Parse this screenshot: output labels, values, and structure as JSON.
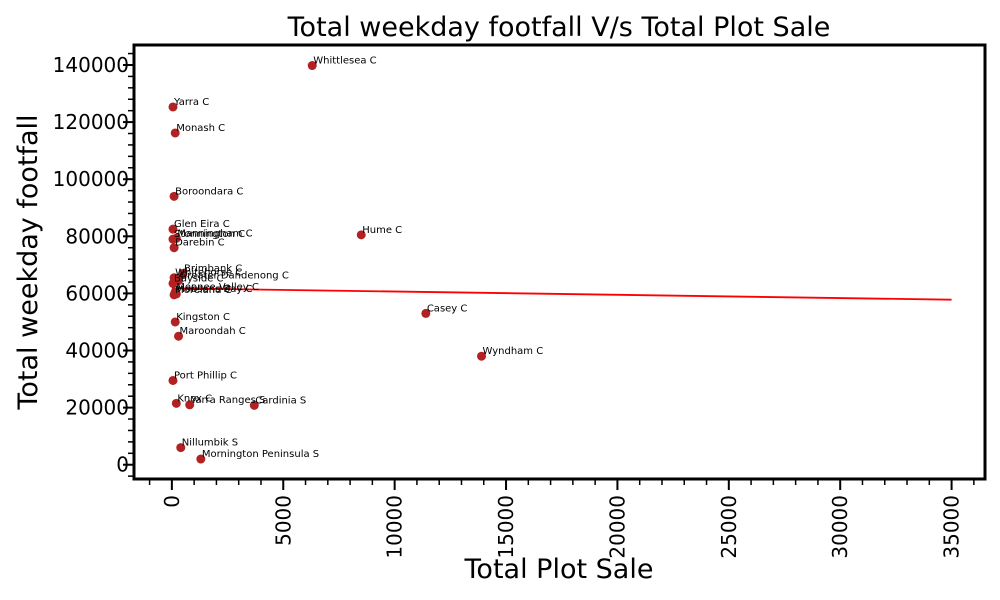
{
  "chart_data": {
    "type": "scatter",
    "title": "Total weekday footfall V/s Total Plot Sale",
    "xlabel": "Total Plot Sale",
    "ylabel": "Total weekday footfall",
    "xlim": [
      -1700,
      36500
    ],
    "ylim": [
      -5000,
      147000
    ],
    "x_ticks": [
      0,
      5000,
      10000,
      15000,
      20000,
      25000,
      30000,
      35000
    ],
    "y_ticks": [
      0,
      20000,
      40000,
      60000,
      80000,
      100000,
      120000,
      140000
    ],
    "grid": false,
    "point_color": "#b22222",
    "line_color": "#ff0000",
    "trend_line": {
      "x": [
        0,
        35000
      ],
      "y": [
        61800,
        57800
      ]
    },
    "points": [
      {
        "label": "Whittlesea C",
        "x": 6300,
        "y": 139800
      },
      {
        "label": "Yarra C",
        "x": 50,
        "y": 125300
      },
      {
        "label": "Monash C",
        "x": 150,
        "y": 116200
      },
      {
        "label": "Boroondara C",
        "x": 100,
        "y": 94000
      },
      {
        "label": "Glen Eira C",
        "x": 50,
        "y": 82500
      },
      {
        "label": "Stonnington C",
        "x": 50,
        "y": 79000
      },
      {
        "label": "Manningham C",
        "x": 200,
        "y": 79300
      },
      {
        "label": "Darebin C",
        "x": 100,
        "y": 76000
      },
      {
        "label": "Hume C",
        "x": 8500,
        "y": 80500
      },
      {
        "label": "Brimbank C",
        "x": 500,
        "y": 67000
      },
      {
        "label": "Whitehorse C",
        "x": 100,
        "y": 65500
      },
      {
        "label": "Bayside C",
        "x": 50,
        "y": 63500
      },
      {
        "label": "Greater Dandenong C",
        "x": 300,
        "y": 64500
      },
      {
        "label": "Moonee Valley C",
        "x": 150,
        "y": 60500
      },
      {
        "label": "Moreland C",
        "x": 100,
        "y": 59500
      },
      {
        "label": "Hobsons Bay C",
        "x": 200,
        "y": 59800
      },
      {
        "label": "Casey C",
        "x": 11400,
        "y": 53000
      },
      {
        "label": "Kingston C",
        "x": 150,
        "y": 50000
      },
      {
        "label": "Maroondah C",
        "x": 300,
        "y": 45000
      },
      {
        "label": "Wyndham C",
        "x": 13900,
        "y": 38000
      },
      {
        "label": "Port Phillip C",
        "x": 50,
        "y": 29500
      },
      {
        "label": "Knox C",
        "x": 200,
        "y": 21500
      },
      {
        "label": "Yarra Ranges S",
        "x": 800,
        "y": 21000
      },
      {
        "label": "Cardinia S",
        "x": 3700,
        "y": 20800
      },
      {
        "label": "Nillumbik S",
        "x": 400,
        "y": 6000
      },
      {
        "label": "Mornington Peninsula S",
        "x": 1300,
        "y": 2000
      }
    ]
  }
}
